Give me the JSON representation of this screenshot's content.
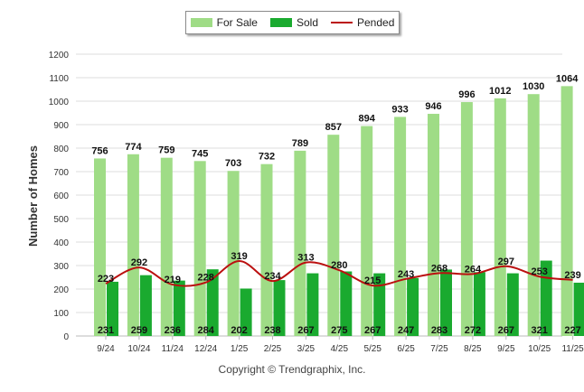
{
  "legend": {
    "for_sale": "For Sale",
    "sold": "Sold",
    "pended": "Pended"
  },
  "footer": {
    "copyright": "Copyright © Trendgraphix, Inc."
  },
  "colors": {
    "for_sale": "#9fdc86",
    "sold": "#1aaa2f",
    "pended": "#bb0f0f",
    "grid": "#dcdcdc"
  },
  "chart_data": {
    "type": "bar",
    "title": "",
    "xlabel": "",
    "ylabel": "Number of Homes",
    "ylim": [
      0,
      1200
    ],
    "yticks": [
      0,
      100,
      200,
      300,
      400,
      500,
      600,
      700,
      800,
      900,
      1000,
      1100,
      1200
    ],
    "grid": true,
    "legend_position": "top-center",
    "categories": [
      "9/24",
      "10/24",
      "11/24",
      "12/24",
      "1/25",
      "2/25",
      "3/25",
      "4/25",
      "5/25",
      "6/25",
      "7/25",
      "8/25",
      "9/25",
      "10/25",
      "11/25"
    ],
    "series": [
      {
        "name": "For Sale",
        "kind": "bar",
        "values": [
          756,
          774,
          759,
          745,
          703,
          732,
          789,
          857,
          894,
          933,
          946,
          996,
          1012,
          1030,
          1064
        ]
      },
      {
        "name": "Sold",
        "kind": "bar",
        "values": [
          231,
          259,
          236,
          284,
          202,
          238,
          267,
          275,
          267,
          247,
          283,
          272,
          267,
          321,
          227
        ]
      },
      {
        "name": "Pended",
        "kind": "line",
        "values": [
          223,
          292,
          219,
          228,
          319,
          234,
          313,
          280,
          215,
          243,
          268,
          264,
          297,
          253,
          239
        ]
      }
    ]
  }
}
